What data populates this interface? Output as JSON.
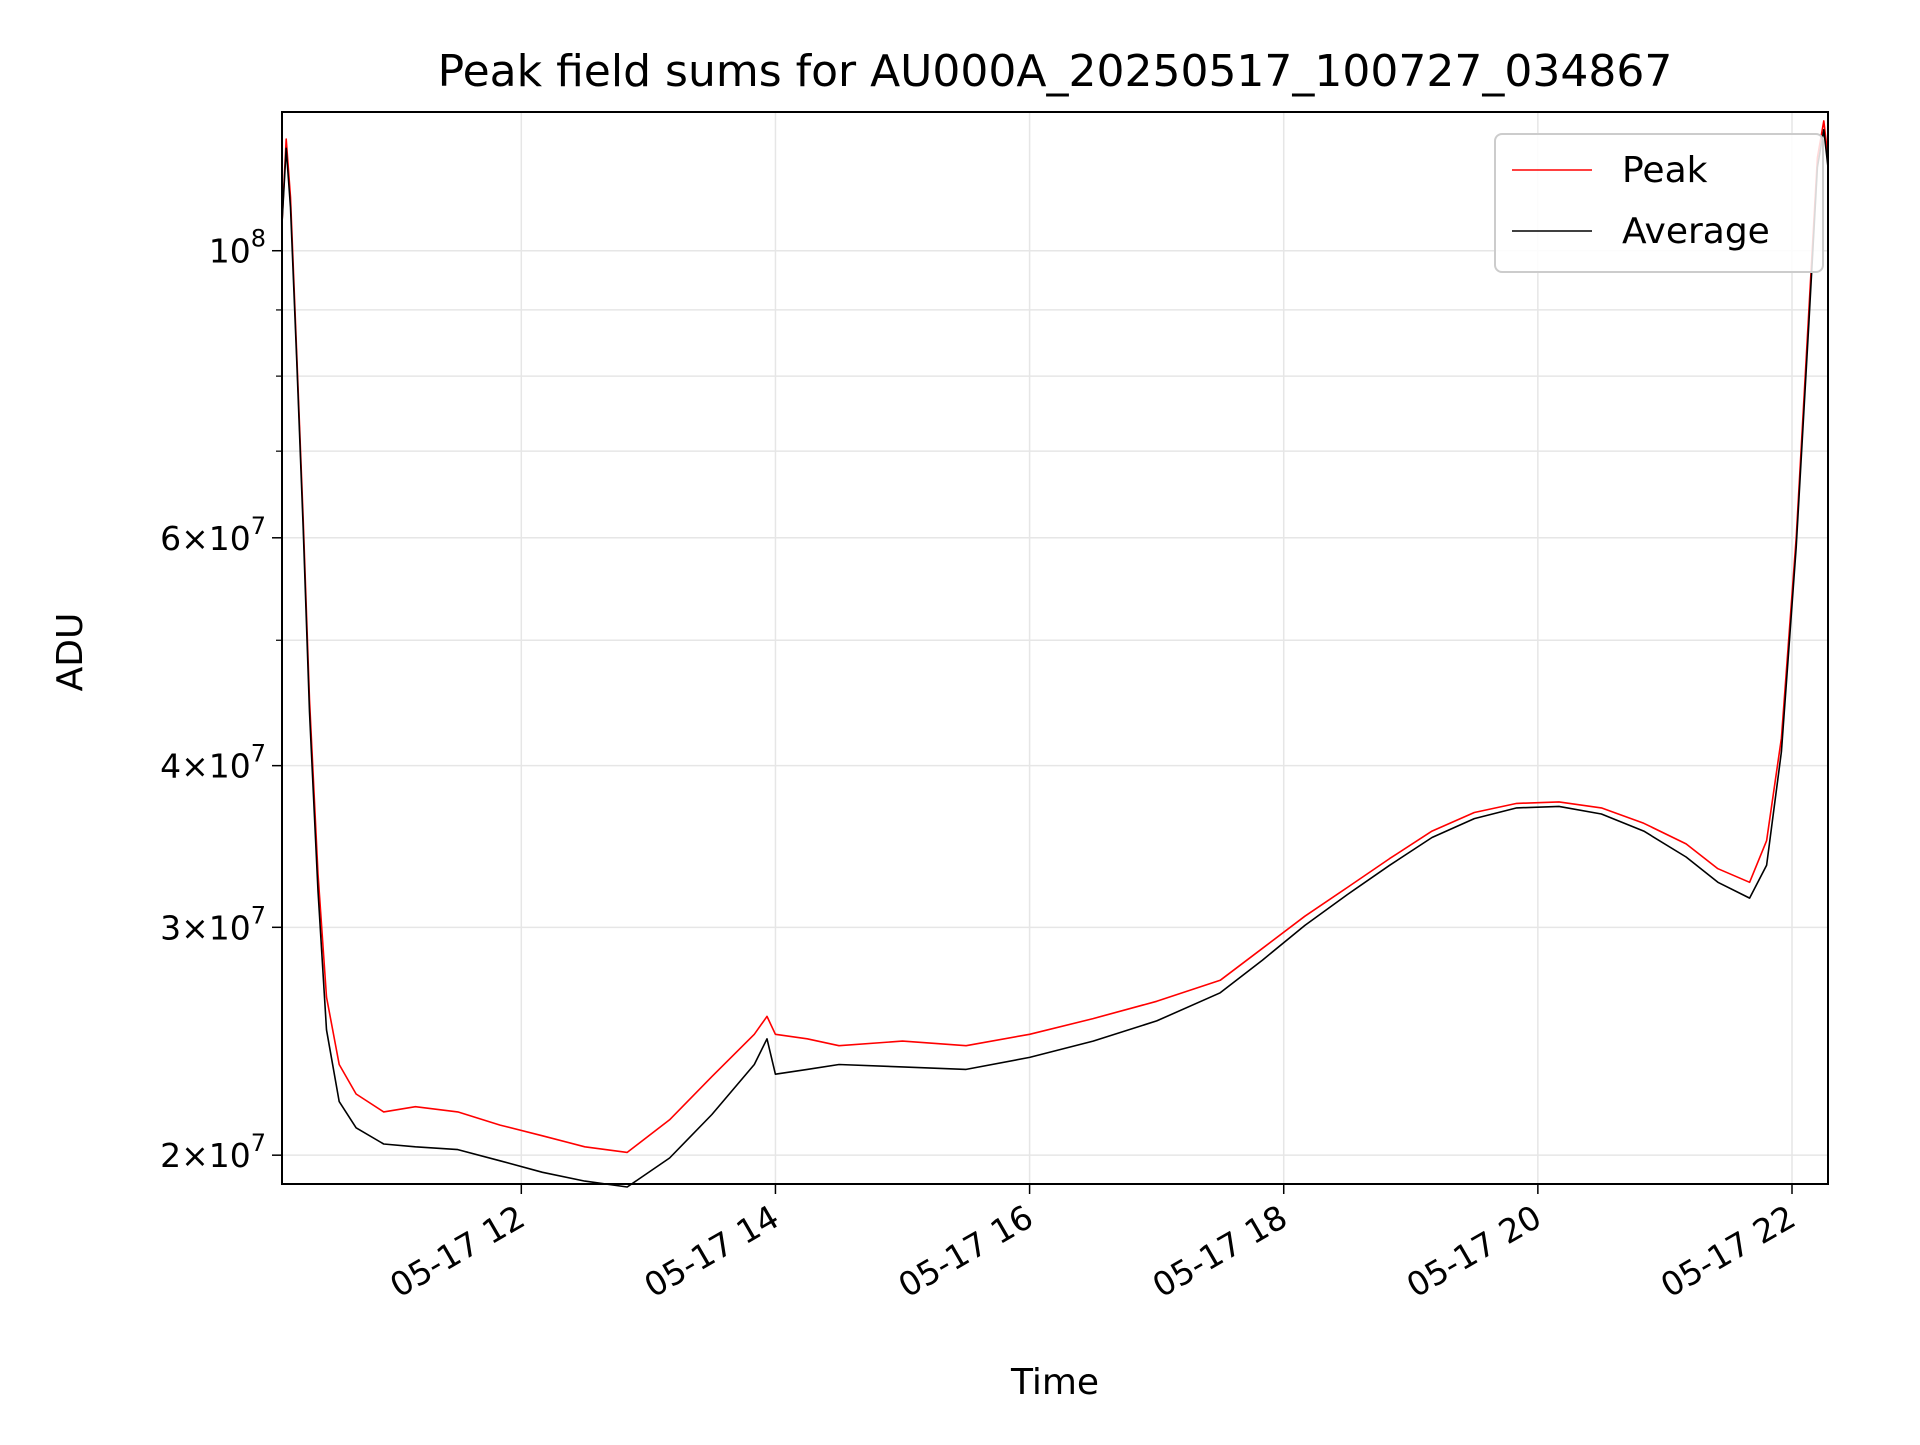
{
  "chart_data": {
    "type": "line",
    "title": "Peak field sums for AU000A_20250517_100727_034867",
    "xlabel": "Time",
    "ylabel": "ADU",
    "yscale": "log",
    "grid": true,
    "legend_placement": "top-right",
    "xlim": [
      "2025-05-17 10:07",
      "2025-05-17 22:17"
    ],
    "ylim": [
      19000000,
      128000000
    ],
    "x_ticks": [
      {
        "value": "2025-05-17 12:00",
        "label": "05-17 12"
      },
      {
        "value": "2025-05-17 14:00",
        "label": "05-17 14"
      },
      {
        "value": "2025-05-17 16:00",
        "label": "05-17 16"
      },
      {
        "value": "2025-05-17 18:00",
        "label": "05-17 18"
      },
      {
        "value": "2025-05-17 20:00",
        "label": "05-17 20"
      },
      {
        "value": "2025-05-17 22:00",
        "label": "05-17 22"
      }
    ],
    "y_ticks": [
      {
        "value": 20000000,
        "mant": "2",
        "base": "10",
        "exp": "7"
      },
      {
        "value": 30000000,
        "mant": "3",
        "base": "10",
        "exp": "7"
      },
      {
        "value": 40000000,
        "mant": "4",
        "base": "10",
        "exp": "7"
      },
      {
        "value": 60000000,
        "mant": "6",
        "base": "10",
        "exp": "7"
      },
      {
        "value": 100000000,
        "mant": "",
        "base": "10",
        "exp": "8"
      }
    ],
    "y_minor_ticks": [
      50000000,
      70000000,
      80000000,
      90000000
    ],
    "series": [
      {
        "name": "Peak",
        "color": "#ff0000",
        "points": [
          [
            "2025-05-17 10:07",
            105000000
          ],
          [
            "2025-05-17 10:09",
            122000000
          ],
          [
            "2025-05-17 10:11",
            110000000
          ],
          [
            "2025-05-17 10:14",
            83000000
          ],
          [
            "2025-05-17 10:17",
            62000000
          ],
          [
            "2025-05-17 10:20",
            45000000
          ],
          [
            "2025-05-17 10:24",
            33000000
          ],
          [
            "2025-05-17 10:28",
            26500000
          ],
          [
            "2025-05-17 10:34",
            23500000
          ],
          [
            "2025-05-17 10:42",
            22300000
          ],
          [
            "2025-05-17 10:55",
            21600000
          ],
          [
            "2025-05-17 11:10",
            21800000
          ],
          [
            "2025-05-17 11:30",
            21600000
          ],
          [
            "2025-05-17 11:50",
            21100000
          ],
          [
            "2025-05-17 12:10",
            20700000
          ],
          [
            "2025-05-17 12:30",
            20300000
          ],
          [
            "2025-05-17 12:50",
            20100000
          ],
          [
            "2025-05-17 13:10",
            21300000
          ],
          [
            "2025-05-17 13:30",
            23000000
          ],
          [
            "2025-05-17 13:50",
            24800000
          ],
          [
            "2025-05-17 13:56",
            25600000
          ],
          [
            "2025-05-17 14:00",
            24800000
          ],
          [
            "2025-05-17 14:15",
            24600000
          ],
          [
            "2025-05-17 14:30",
            24300000
          ],
          [
            "2025-05-17 15:00",
            24500000
          ],
          [
            "2025-05-17 15:30",
            24300000
          ],
          [
            "2025-05-17 16:00",
            24800000
          ],
          [
            "2025-05-17 16:30",
            25500000
          ],
          [
            "2025-05-17 17:00",
            26300000
          ],
          [
            "2025-05-17 17:30",
            27300000
          ],
          [
            "2025-05-17 17:50",
            28900000
          ],
          [
            "2025-05-17 18:10",
            30600000
          ],
          [
            "2025-05-17 18:30",
            32200000
          ],
          [
            "2025-05-17 18:50",
            33900000
          ],
          [
            "2025-05-17 19:10",
            35600000
          ],
          [
            "2025-05-17 19:30",
            36800000
          ],
          [
            "2025-05-17 19:50",
            37400000
          ],
          [
            "2025-05-17 20:10",
            37500000
          ],
          [
            "2025-05-17 20:30",
            37100000
          ],
          [
            "2025-05-17 20:50",
            36100000
          ],
          [
            "2025-05-17 21:10",
            34800000
          ],
          [
            "2025-05-17 21:25",
            33300000
          ],
          [
            "2025-05-17 21:40",
            32500000
          ],
          [
            "2025-05-17 21:48",
            35000000
          ],
          [
            "2025-05-17 21:55",
            42000000
          ],
          [
            "2025-05-17 22:02",
            60000000
          ],
          [
            "2025-05-17 22:08",
            90000000
          ],
          [
            "2025-05-17 22:12",
            118000000
          ],
          [
            "2025-05-17 22:15",
            126000000
          ],
          [
            "2025-05-17 22:17",
            118000000
          ]
        ]
      },
      {
        "name": "Average",
        "color": "#000000",
        "points": [
          [
            "2025-05-17 10:07",
            105000000
          ],
          [
            "2025-05-17 10:09",
            120000000
          ],
          [
            "2025-05-17 10:11",
            108000000
          ],
          [
            "2025-05-17 10:14",
            82000000
          ],
          [
            "2025-05-17 10:17",
            61000000
          ],
          [
            "2025-05-17 10:20",
            44000000
          ],
          [
            "2025-05-17 10:24",
            32000000
          ],
          [
            "2025-05-17 10:28",
            25000000
          ],
          [
            "2025-05-17 10:34",
            22000000
          ],
          [
            "2025-05-17 10:42",
            21000000
          ],
          [
            "2025-05-17 10:55",
            20400000
          ],
          [
            "2025-05-17 11:10",
            20300000
          ],
          [
            "2025-05-17 11:30",
            20200000
          ],
          [
            "2025-05-17 11:50",
            19800000
          ],
          [
            "2025-05-17 12:10",
            19400000
          ],
          [
            "2025-05-17 12:30",
            19100000
          ],
          [
            "2025-05-17 12:50",
            18900000
          ],
          [
            "2025-05-17 13:10",
            19900000
          ],
          [
            "2025-05-17 13:30",
            21500000
          ],
          [
            "2025-05-17 13:50",
            23500000
          ],
          [
            "2025-05-17 13:56",
            24600000
          ],
          [
            "2025-05-17 14:00",
            23100000
          ],
          [
            "2025-05-17 14:15",
            23300000
          ],
          [
            "2025-05-17 14:30",
            23500000
          ],
          [
            "2025-05-17 15:00",
            23400000
          ],
          [
            "2025-05-17 15:30",
            23300000
          ],
          [
            "2025-05-17 16:00",
            23800000
          ],
          [
            "2025-05-17 16:30",
            24500000
          ],
          [
            "2025-05-17 17:00",
            25400000
          ],
          [
            "2025-05-17 17:30",
            26700000
          ],
          [
            "2025-05-17 17:50",
            28300000
          ],
          [
            "2025-05-17 18:10",
            30100000
          ],
          [
            "2025-05-17 18:30",
            31800000
          ],
          [
            "2025-05-17 18:50",
            33500000
          ],
          [
            "2025-05-17 19:10",
            35200000
          ],
          [
            "2025-05-17 19:30",
            36400000
          ],
          [
            "2025-05-17 19:50",
            37100000
          ],
          [
            "2025-05-17 20:10",
            37200000
          ],
          [
            "2025-05-17 20:30",
            36700000
          ],
          [
            "2025-05-17 20:50",
            35600000
          ],
          [
            "2025-05-17 21:10",
            34000000
          ],
          [
            "2025-05-17 21:25",
            32500000
          ],
          [
            "2025-05-17 21:40",
            31600000
          ],
          [
            "2025-05-17 21:48",
            33500000
          ],
          [
            "2025-05-17 21:55",
            41000000
          ],
          [
            "2025-05-17 22:02",
            59000000
          ],
          [
            "2025-05-17 22:08",
            88000000
          ],
          [
            "2025-05-17 22:12",
            116000000
          ],
          [
            "2025-05-17 22:15",
            124000000
          ],
          [
            "2025-05-17 22:17",
            116000000
          ]
        ]
      }
    ]
  }
}
